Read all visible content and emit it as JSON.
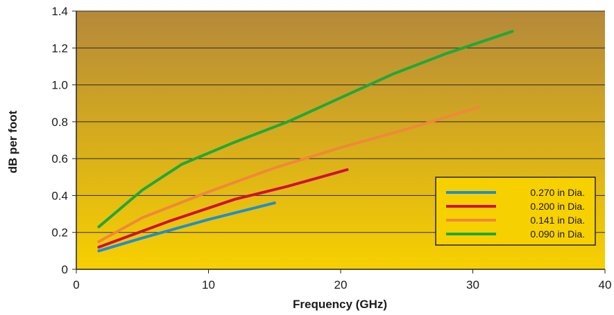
{
  "chart_data": {
    "type": "line",
    "title": "",
    "xlabel": "Frequency (GHz)",
    "ylabel": "dB per foot",
    "xlim": [
      0,
      40
    ],
    "ylim": [
      0,
      1.4
    ],
    "x_ticks": [
      {
        "value": 0,
        "label": "0"
      },
      {
        "value": 10,
        "label": "10"
      },
      {
        "value": 20,
        "label": "20"
      },
      {
        "value": 30,
        "label": "30"
      },
      {
        "value": 40,
        "label": "40"
      }
    ],
    "y_ticks": [
      {
        "value": 0,
        "label": "0"
      },
      {
        "value": 0.2,
        "label": "0.2"
      },
      {
        "value": 0.4,
        "label": "0.4"
      },
      {
        "value": 0.6,
        "label": "0.6"
      },
      {
        "value": 0.8,
        "label": "0.8"
      },
      {
        "value": 1.0,
        "label": "1.0"
      },
      {
        "value": 1.2,
        "label": "1.2"
      },
      {
        "value": 1.4,
        "label": "1.4"
      }
    ],
    "grid": true,
    "legend_position": "lower-right",
    "background_gradient": [
      "#b5893a",
      "#f7d000"
    ],
    "series": [
      {
        "name": "0.270 in Dia.",
        "color": "#1f8fd0",
        "points": [
          [
            1.7,
            0.1
          ],
          [
            5,
            0.17
          ],
          [
            10,
            0.27
          ],
          [
            15,
            0.36
          ]
        ]
      },
      {
        "name": "0.200 in Dia.",
        "color": "#d0103a",
        "points": [
          [
            1.7,
            0.12
          ],
          [
            7,
            0.26
          ],
          [
            12,
            0.38
          ],
          [
            16,
            0.45
          ],
          [
            20.5,
            0.54
          ]
        ]
      },
      {
        "name": "0.141 in Dia.",
        "color": "#f0883a",
        "points": [
          [
            1.7,
            0.15
          ],
          [
            5,
            0.28
          ],
          [
            10,
            0.42
          ],
          [
            15,
            0.55
          ],
          [
            20,
            0.66
          ],
          [
            25,
            0.76
          ],
          [
            30.5,
            0.88
          ]
        ]
      },
      {
        "name": "0.090 in Dia.",
        "color": "#1fa83a",
        "points": [
          [
            1.7,
            0.23
          ],
          [
            5,
            0.43
          ],
          [
            8,
            0.57
          ],
          [
            12,
            0.69
          ],
          [
            16,
            0.8
          ],
          [
            20,
            0.93
          ],
          [
            24,
            1.06
          ],
          [
            28,
            1.17
          ],
          [
            33,
            1.29
          ]
        ]
      }
    ]
  }
}
